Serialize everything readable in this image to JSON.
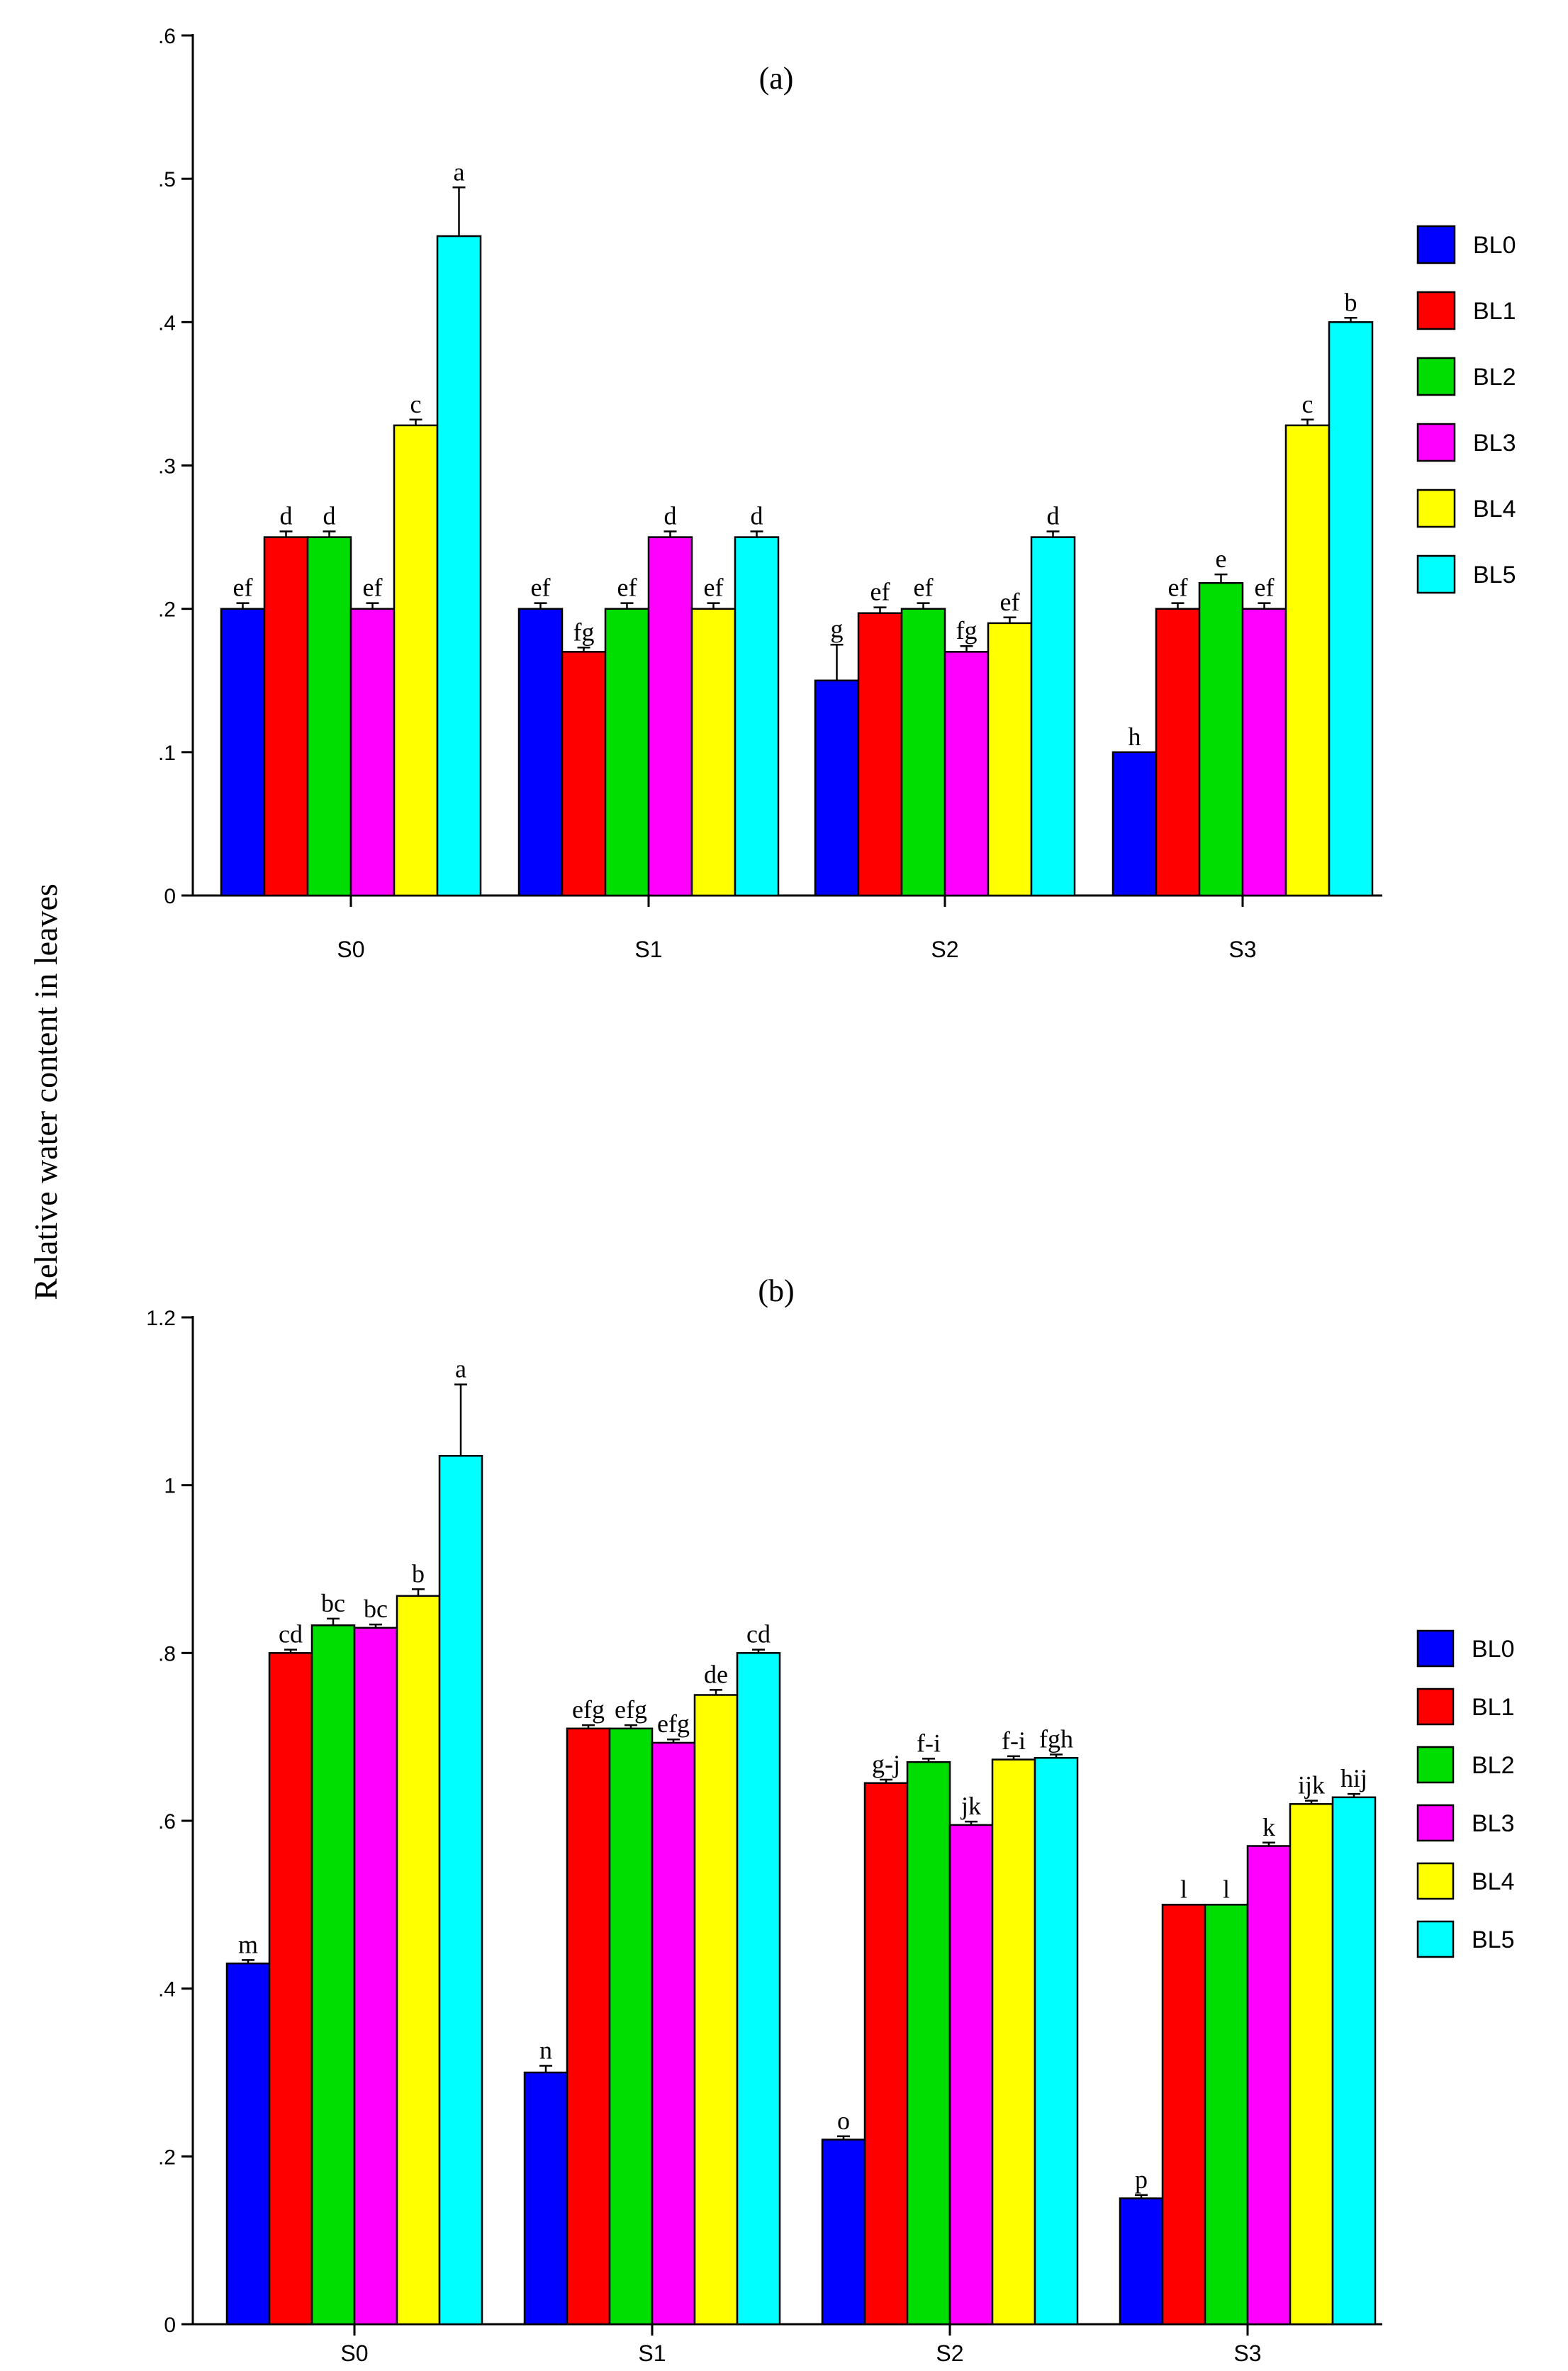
{
  "figure": {
    "ylabel": "Relative water content in leaves"
  },
  "chart_data": [
    {
      "type": "bar",
      "title": "(a)",
      "xlabel": "",
      "ylabel": "Relative water content in leaves",
      "ylim": [
        0,
        0.6
      ],
      "yticks": [
        0,
        0.1,
        0.2,
        0.3,
        0.4,
        0.5,
        0.6
      ],
      "ytick_labels": [
        "0",
        ".1",
        ".2",
        ".3",
        ".4",
        ".5",
        ".6"
      ],
      "categories": [
        "S0",
        "S1",
        "S2",
        "S3"
      ],
      "legend_position": "right",
      "series": [
        {
          "name": "BL0",
          "color": "#0000ff",
          "values": [
            0.2,
            0.2,
            0.15,
            0.1
          ],
          "errors": [
            0.004,
            0.004,
            0.025,
            0.0
          ],
          "labels": [
            "ef",
            "ef",
            "g",
            "h"
          ]
        },
        {
          "name": "BL1",
          "color": "#ff0000",
          "values": [
            0.25,
            0.17,
            0.197,
            0.2
          ],
          "errors": [
            0.004,
            0.003,
            0.004,
            0.004
          ],
          "labels": [
            "d",
            "fg",
            "ef",
            "ef"
          ]
        },
        {
          "name": "BL2",
          "color": "#00dd00",
          "values": [
            0.25,
            0.2,
            0.2,
            0.218
          ],
          "errors": [
            0.004,
            0.004,
            0.004,
            0.006
          ],
          "labels": [
            "d",
            "ef",
            "ef",
            "e"
          ]
        },
        {
          "name": "BL3",
          "color": "#ff00ff",
          "values": [
            0.2,
            0.25,
            0.17,
            0.2
          ],
          "errors": [
            0.004,
            0.004,
            0.004,
            0.004
          ],
          "labels": [
            "ef",
            "d",
            "fg",
            "ef"
          ]
        },
        {
          "name": "BL4",
          "color": "#ffff00",
          "values": [
            0.328,
            0.2,
            0.19,
            0.328
          ],
          "errors": [
            0.004,
            0.004,
            0.004,
            0.004
          ],
          "labels": [
            "c",
            "ef",
            "ef",
            "c"
          ]
        },
        {
          "name": "BL5",
          "color": "#00ffff",
          "values": [
            0.46,
            0.25,
            0.25,
            0.4
          ],
          "errors": [
            0.034,
            0.004,
            0.004,
            0.003
          ],
          "labels": [
            "a",
            "d",
            "d",
            "b"
          ]
        }
      ]
    },
    {
      "type": "bar",
      "title": "(b)",
      "xlabel": "",
      "ylabel": "Relative water content in leaves",
      "ylim": [
        0,
        1.2
      ],
      "yticks": [
        0,
        0.2,
        0.4,
        0.6,
        0.8,
        1.0,
        1.2
      ],
      "ytick_labels": [
        "0",
        ".2",
        ".4",
        ".6",
        ".8",
        "1",
        "1.2"
      ],
      "categories": [
        "S0",
        "S1",
        "S2",
        "S3"
      ],
      "legend_position": "right",
      "series": [
        {
          "name": "BL0",
          "color": "#0000ff",
          "values": [
            0.43,
            0.3,
            0.22,
            0.15
          ],
          "errors": [
            0.004,
            0.008,
            0.004,
            0.004
          ],
          "labels": [
            "m",
            "n",
            "o",
            "p"
          ]
        },
        {
          "name": "BL1",
          "color": "#ff0000",
          "values": [
            0.8,
            0.71,
            0.645,
            0.5
          ],
          "errors": [
            0.004,
            0.004,
            0.004,
            0.0
          ],
          "labels": [
            "cd",
            "efg",
            "g-j",
            "l"
          ]
        },
        {
          "name": "BL2",
          "color": "#00dd00",
          "values": [
            0.833,
            0.71,
            0.67,
            0.5
          ],
          "errors": [
            0.008,
            0.004,
            0.004,
            0.0
          ],
          "labels": [
            "bc",
            "efg",
            "f-i",
            "l"
          ]
        },
        {
          "name": "BL3",
          "color": "#ff00ff",
          "values": [
            0.83,
            0.693,
            0.595,
            0.57
          ],
          "errors": [
            0.004,
            0.004,
            0.004,
            0.004
          ],
          "labels": [
            "bc",
            "efg",
            "jk",
            "k"
          ]
        },
        {
          "name": "BL4",
          "color": "#ffff00",
          "values": [
            0.868,
            0.75,
            0.673,
            0.62
          ],
          "errors": [
            0.008,
            0.006,
            0.004,
            0.004
          ],
          "labels": [
            "b",
            "de",
            "f-i",
            "ijk"
          ]
        },
        {
          "name": "BL5",
          "color": "#00ffff",
          "values": [
            1.035,
            0.8,
            0.675,
            0.628
          ],
          "errors": [
            0.085,
            0.004,
            0.004,
            0.004
          ],
          "labels": [
            "a",
            "cd",
            "fgh",
            "hij"
          ]
        }
      ]
    }
  ]
}
